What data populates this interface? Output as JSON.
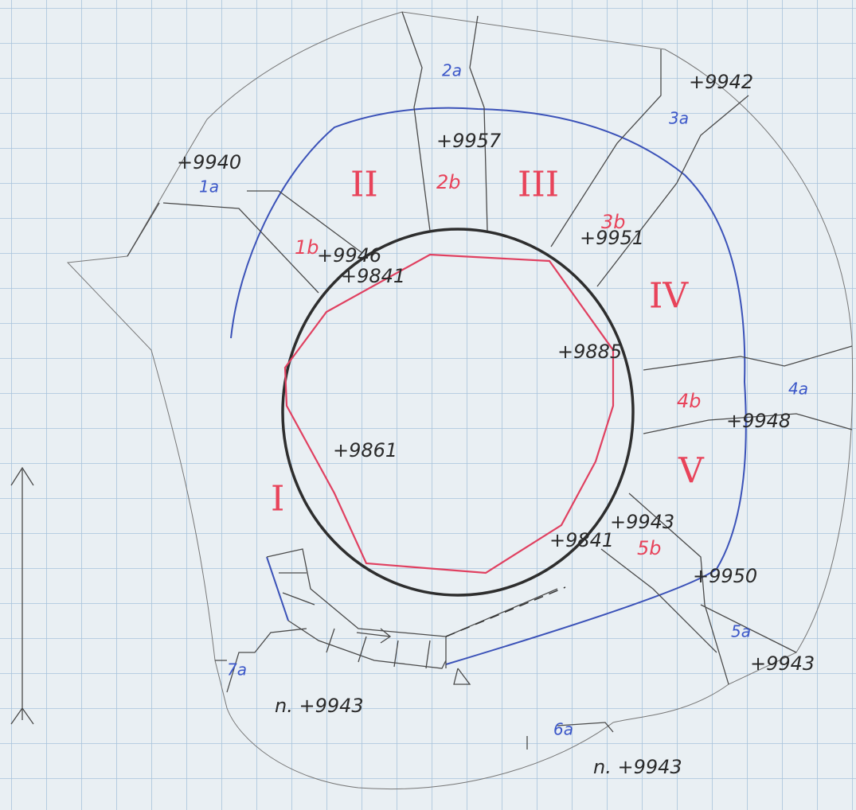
{
  "zones": [
    "I",
    "II",
    "III",
    "IV",
    "V"
  ],
  "inner_sections": [
    "1b",
    "2b",
    "3b",
    "4b",
    "5b"
  ],
  "outer_sections": [
    "1a",
    "2a",
    "3a",
    "4a",
    "5a",
    "6a",
    "7a"
  ],
  "elevations": [
    "+9957",
    "+9942",
    "+9940",
    "+9946",
    "+9841",
    "+9951",
    "+9885",
    "+9948",
    "+9861",
    "+9841",
    "+9943",
    "+9950",
    "+9943",
    "n. +9943",
    "n. +9943"
  ]
}
